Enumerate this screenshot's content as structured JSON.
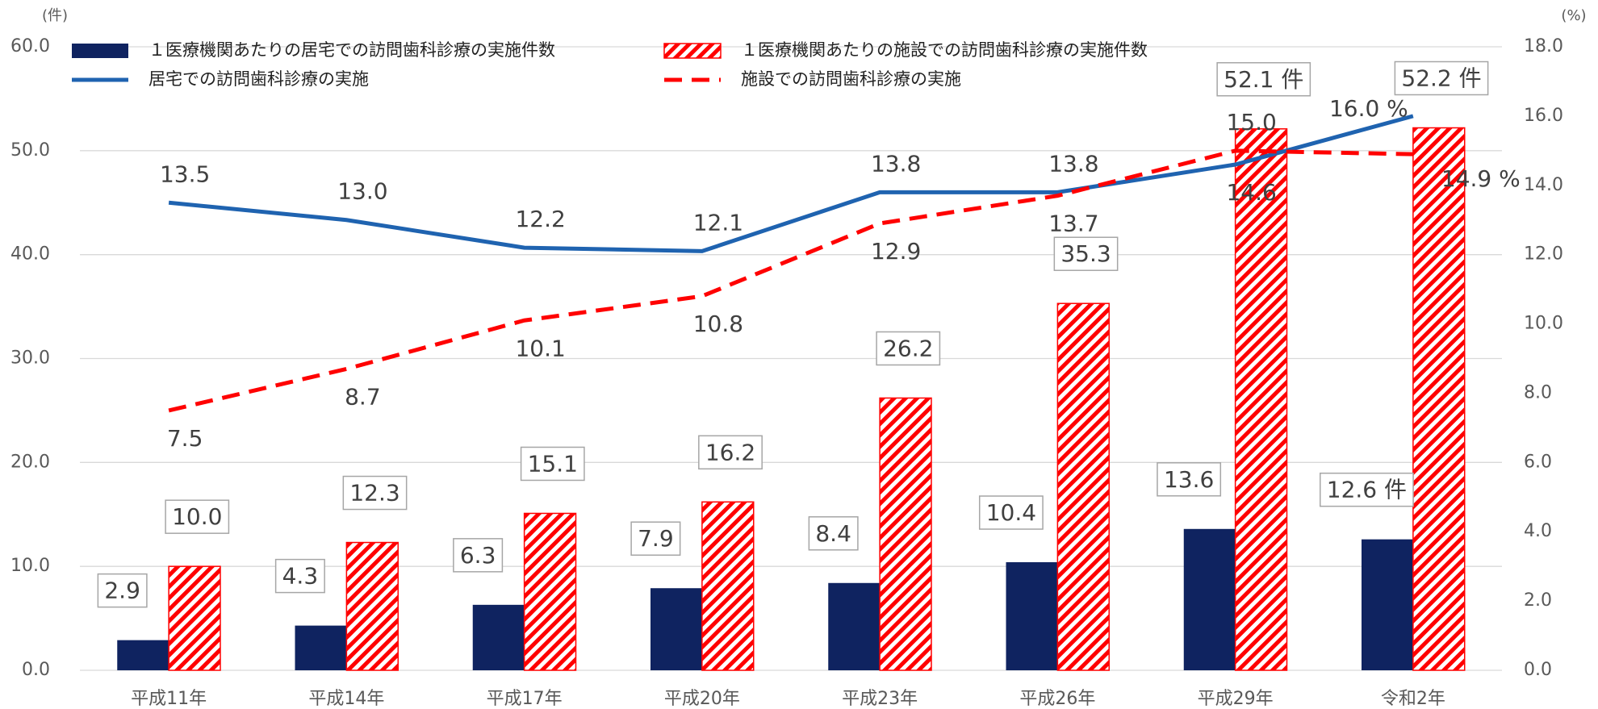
{
  "chart_data": {
    "type": "bar_line",
    "y_unit_label": "(件)",
    "y2_unit_label": "(%)",
    "categories": [
      "平成11年",
      "平成14年",
      "平成17年",
      "平成20年",
      "平成23年",
      "平成26年",
      "平成29年",
      "令和2年"
    ],
    "series": [
      {
        "name": "１医療機関あたりの居宅での訪問歯科診療の実施件数",
        "type": "bar",
        "color": "#0f2360",
        "hatch": false,
        "values": [
          2.9,
          4.3,
          6.3,
          7.9,
          8.4,
          10.4,
          13.6,
          12.6
        ],
        "value_labels": [
          "2.9",
          "4.3",
          "6.3",
          "7.9",
          "8.4",
          "10.4",
          "13.6",
          "12.6 件"
        ]
      },
      {
        "name": "１医療機関あたりの施設での訪問歯科診療の実施件数",
        "type": "bar",
        "color": "#ff0000",
        "hatch": true,
        "values": [
          10.0,
          12.3,
          15.1,
          16.2,
          26.2,
          35.3,
          52.1,
          52.2
        ],
        "value_labels": [
          "10.0",
          "12.3",
          "15.1",
          "16.2",
          "26.2",
          "35.3",
          "52.1 件",
          "52.2 件"
        ]
      },
      {
        "name": "居宅での訪問歯科診療の実施",
        "type": "line",
        "axis": "y2",
        "color": "#1f63b0",
        "dash": false,
        "values": [
          13.5,
          13.0,
          12.2,
          12.1,
          13.8,
          13.8,
          14.6,
          16.0
        ],
        "value_labels": [
          "13.5",
          "13.0",
          "12.2",
          "12.1",
          "13.8",
          "13.8",
          "14.6",
          "16.0 %"
        ]
      },
      {
        "name": "施設での訪問歯科診療の実施",
        "type": "line",
        "axis": "y2",
        "color": "#ff0000",
        "dash": true,
        "values": [
          7.5,
          8.7,
          10.1,
          10.8,
          12.9,
          13.7,
          15.0,
          14.9
        ],
        "value_labels": [
          "7.5",
          "8.7",
          "10.1",
          "10.8",
          "12.9",
          "13.7",
          "15.0",
          "14.9 %"
        ]
      }
    ],
    "ylim": [
      0,
      60
    ],
    "yticks": [
      {
        "value": 0,
        "label": "0.0"
      },
      {
        "value": 10,
        "label": "10.0"
      },
      {
        "value": 20,
        "label": "20.0"
      },
      {
        "value": 30,
        "label": "30.0"
      },
      {
        "value": 40,
        "label": "40.0"
      },
      {
        "value": 50,
        "label": "50.0"
      },
      {
        "value": 60,
        "label": "60.0"
      }
    ],
    "y2lim": [
      0,
      18
    ],
    "y2ticks": [
      {
        "value": 0,
        "label": "0.0"
      },
      {
        "value": 2,
        "label": "2.0"
      },
      {
        "value": 4,
        "label": "4.0"
      },
      {
        "value": 6,
        "label": "6.0"
      },
      {
        "value": 8,
        "label": "8.0"
      },
      {
        "value": 10,
        "label": "10.0"
      },
      {
        "value": 12,
        "label": "12.0"
      },
      {
        "value": 14,
        "label": "14.0"
      },
      {
        "value": 16,
        "label": "16.0"
      },
      {
        "value": 18,
        "label": "18.0"
      }
    ],
    "grid": true,
    "legend": "top"
  }
}
